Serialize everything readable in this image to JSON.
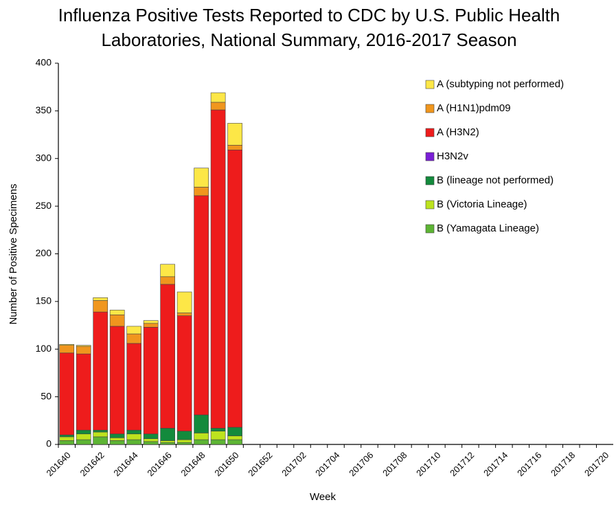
{
  "chart_data": {
    "type": "stacked_bar",
    "title": [
      "Influenza Positive Tests Reported to CDC by U.S. Public Health",
      "Laboratories, National Summary, 2016-2017 Season"
    ],
    "x_label": "Week",
    "y_label": "Number of Positive Specimens",
    "categories": [
      "201640",
      null,
      "201642",
      null,
      "201644",
      null,
      "201646",
      null,
      "201648",
      null,
      "201650",
      null,
      "201652",
      null,
      "201702",
      null,
      "201704",
      null,
      "201706",
      null,
      "201708",
      null,
      "201710",
      null,
      "201712",
      null,
      "201714",
      null,
      "201716",
      null,
      "201718",
      null,
      "201720"
    ],
    "series": [
      {
        "name": "B (Yamagata Lineage)",
        "color": "#5db534",
        "values": [
          4,
          5,
          8,
          4,
          5,
          3,
          2,
          2,
          5,
          5,
          5,
          null,
          null,
          null,
          null,
          null,
          null,
          null,
          null,
          null,
          null,
          null,
          null,
          null,
          null,
          null,
          null,
          null,
          null,
          null,
          null,
          null,
          null
        ]
      },
      {
        "name": "B (Victoria Lineage)",
        "color": "#bde31e",
        "values": [
          4,
          6,
          5,
          3,
          6,
          3,
          2,
          3,
          7,
          9,
          4,
          null,
          null,
          null,
          null,
          null,
          null,
          null,
          null,
          null,
          null,
          null,
          null,
          null,
          null,
          null,
          null,
          null,
          null,
          null,
          null,
          null,
          null
        ]
      },
      {
        "name": "B (lineage not performed)",
        "color": "#138a3c",
        "values": [
          2,
          4,
          2,
          4,
          4,
          5,
          13,
          9,
          19,
          3,
          9,
          null,
          null,
          null,
          null,
          null,
          null,
          null,
          null,
          null,
          null,
          null,
          null,
          null,
          null,
          null,
          null,
          null,
          null,
          null,
          null,
          null,
          null
        ]
      },
      {
        "name": "H3N2v",
        "color": "#7a1fd6",
        "values": [
          0,
          0,
          0,
          0,
          0,
          0,
          0,
          0,
          0,
          0,
          0,
          null,
          null,
          null,
          null,
          null,
          null,
          null,
          null,
          null,
          null,
          null,
          null,
          null,
          null,
          null,
          null,
          null,
          null,
          null,
          null,
          null,
          null
        ]
      },
      {
        "name": "A (H3N2)",
        "color": "#ee1c1c",
        "values": [
          86,
          80,
          124,
          113,
          91,
          112,
          151,
          121,
          230,
          334,
          291,
          null,
          null,
          null,
          null,
          null,
          null,
          null,
          null,
          null,
          null,
          null,
          null,
          null,
          null,
          null,
          null,
          null,
          null,
          null,
          null,
          null,
          null
        ]
      },
      {
        "name": "A (H1N1)pdm09",
        "color": "#f0961e",
        "values": [
          8,
          8,
          12,
          12,
          10,
          4,
          8,
          3,
          9,
          8,
          5,
          null,
          null,
          null,
          null,
          null,
          null,
          null,
          null,
          null,
          null,
          null,
          null,
          null,
          null,
          null,
          null,
          null,
          null,
          null,
          null,
          null,
          null
        ]
      },
      {
        "name": "A (subtyping not performed)",
        "color": "#fde747",
        "values": [
          1,
          1,
          3,
          5,
          8,
          3,
          13,
          22,
          20,
          10,
          23,
          null,
          null,
          null,
          null,
          null,
          null,
          null,
          null,
          null,
          null,
          null,
          null,
          null,
          null,
          null,
          null,
          null,
          null,
          null,
          null,
          null,
          null
        ]
      }
    ],
    "ylim": [
      0,
      400
    ],
    "yticks": [
      0,
      50,
      100,
      150,
      200,
      250,
      300,
      350,
      400
    ],
    "grid": false
  }
}
